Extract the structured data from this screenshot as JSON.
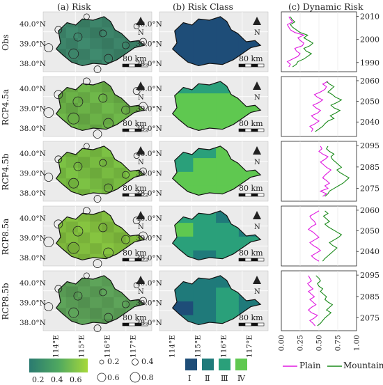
{
  "headers": {
    "risk": "(a) Risk",
    "risk_class": "(b) Risk Class",
    "dynamic": "(c) Dynamic Risk"
  },
  "rows": [
    {
      "label": "Obs",
      "years": [
        "2010",
        "2000",
        "1990"
      ],
      "year_range": [
        1986,
        2012
      ]
    },
    {
      "label": "RCP4.5a",
      "years": [
        "2060",
        "2050",
        "2040"
      ],
      "year_range": [
        2033,
        2062
      ]
    },
    {
      "label": "RCP4.5b",
      "years": [
        "2095",
        "2085",
        "2075"
      ],
      "year_range": [
        2069,
        2097
      ]
    },
    {
      "label": "RCP8.5a",
      "years": [
        "2060",
        "2050",
        "2040"
      ],
      "year_range": [
        2033,
        2062
      ]
    },
    {
      "label": "RCP8.5b",
      "years": [
        "2095",
        "2085",
        "2075"
      ],
      "year_range": [
        2069,
        2097
      ]
    }
  ],
  "map": {
    "lat_ticks": [
      "40.0°N",
      "39.0°N",
      "38.0°N"
    ],
    "lon_ticks": [
      "114°E",
      "115°E",
      "116°E",
      "117°E"
    ],
    "north": "N",
    "scale": "80 km"
  },
  "chart_data": {
    "type": "line",
    "xlabel": "",
    "ylabel": "",
    "xlim": [
      0,
      1
    ],
    "x_ticks": [
      "0.00",
      "0.25",
      "0.50",
      "0.75",
      "1.00"
    ],
    "panels": [
      {
        "row": "Obs",
        "series": [
          {
            "name": "Plain",
            "values": [
              0.1,
              0.12,
              0.08,
              0.15,
              0.22,
              0.25,
              0.2,
              0.18,
              0.28,
              0.3,
              0.25,
              0.22,
              0.3,
              0.18,
              0.12,
              0.1,
              0.08,
              0.15,
              0.12,
              0.1
            ]
          },
          {
            "name": "Mountain",
            "values": [
              0.15,
              0.2,
              0.22,
              0.3,
              0.35,
              0.4,
              0.33,
              0.3,
              0.38,
              0.42,
              0.36,
              0.3,
              0.35,
              0.25,
              0.2,
              0.15,
              0.12,
              0.18,
              0.14,
              0.12
            ]
          }
        ]
      },
      {
        "row": "RCP4.5a",
        "series": [
          {
            "name": "Plain",
            "values": [
              0.4,
              0.42,
              0.38,
              0.45,
              0.5,
              0.44,
              0.4,
              0.48,
              0.52,
              0.46,
              0.42,
              0.5,
              0.55,
              0.48,
              0.44,
              0.52,
              0.58,
              0.6,
              0.55,
              0.62
            ]
          },
          {
            "name": "Mountain",
            "values": [
              0.45,
              0.5,
              0.55,
              0.58,
              0.62,
              0.7,
              0.65,
              0.72,
              0.78,
              0.7,
              0.66,
              0.74,
              0.8,
              0.72,
              0.68,
              0.62,
              0.66,
              0.7,
              0.64,
              0.6
            ]
          }
        ]
      },
      {
        "row": "RCP4.5b",
        "series": [
          {
            "name": "Plain",
            "values": [
              0.55,
              0.6,
              0.52,
              0.62,
              0.58,
              0.64,
              0.6,
              0.55,
              0.58,
              0.62,
              0.66,
              0.6,
              0.56,
              0.52,
              0.58,
              0.62,
              0.55,
              0.5,
              0.54,
              0.52
            ]
          },
          {
            "name": "Mountain",
            "values": [
              0.58,
              0.62,
              0.64,
              0.7,
              0.76,
              0.82,
              0.86,
              0.9,
              0.84,
              0.78,
              0.74,
              0.8,
              0.76,
              0.72,
              0.68,
              0.66,
              0.7,
              0.64,
              0.6,
              0.62
            ]
          }
        ]
      },
      {
        "row": "RCP8.5a",
        "series": [
          {
            "name": "Plain",
            "values": [
              0.5,
              0.44,
              0.4,
              0.46,
              0.52,
              0.48,
              0.42,
              0.38,
              0.44,
              0.5,
              0.46,
              0.42,
              0.36,
              0.4,
              0.46,
              0.44,
              0.4,
              0.38,
              0.44,
              0.5
            ]
          },
          {
            "name": "Mountain",
            "values": [
              0.55,
              0.58,
              0.62,
              0.66,
              0.7,
              0.74,
              0.68,
              0.64,
              0.7,
              0.76,
              0.8,
              0.74,
              0.68,
              0.62,
              0.58,
              0.64,
              0.6,
              0.56,
              0.62,
              0.58
            ]
          }
        ]
      },
      {
        "row": "RCP8.5b",
        "series": [
          {
            "name": "Plain",
            "values": [
              0.45,
              0.42,
              0.38,
              0.44,
              0.48,
              0.4,
              0.36,
              0.4,
              0.46,
              0.42,
              0.38,
              0.44,
              0.4,
              0.36,
              0.42,
              0.38,
              0.35,
              0.4,
              0.38,
              0.36
            ]
          },
          {
            "name": "Mountain",
            "values": [
              0.48,
              0.52,
              0.55,
              0.58,
              0.62,
              0.66,
              0.6,
              0.64,
              0.68,
              0.62,
              0.58,
              0.6,
              0.56,
              0.52,
              0.55,
              0.5,
              0.48,
              0.52,
              0.5,
              0.46
            ]
          }
        ]
      }
    ]
  },
  "legend": {
    "gradient_ticks": [
      "0.2",
      "0.4",
      "0.6"
    ],
    "sizes": [
      "0.2",
      "0.4",
      "0.6",
      "0.8"
    ],
    "classes": [
      "Ⅰ",
      "Ⅱ",
      "Ⅲ",
      "Ⅳ"
    ],
    "class_colors": [
      "#1e4d78",
      "#1f7a7a",
      "#2aa07a",
      "#5fc850"
    ],
    "lines": [
      "Plain",
      "Mountain"
    ]
  },
  "colors": {
    "plain": "#e018e0",
    "mountain": "#1a8a1a"
  }
}
